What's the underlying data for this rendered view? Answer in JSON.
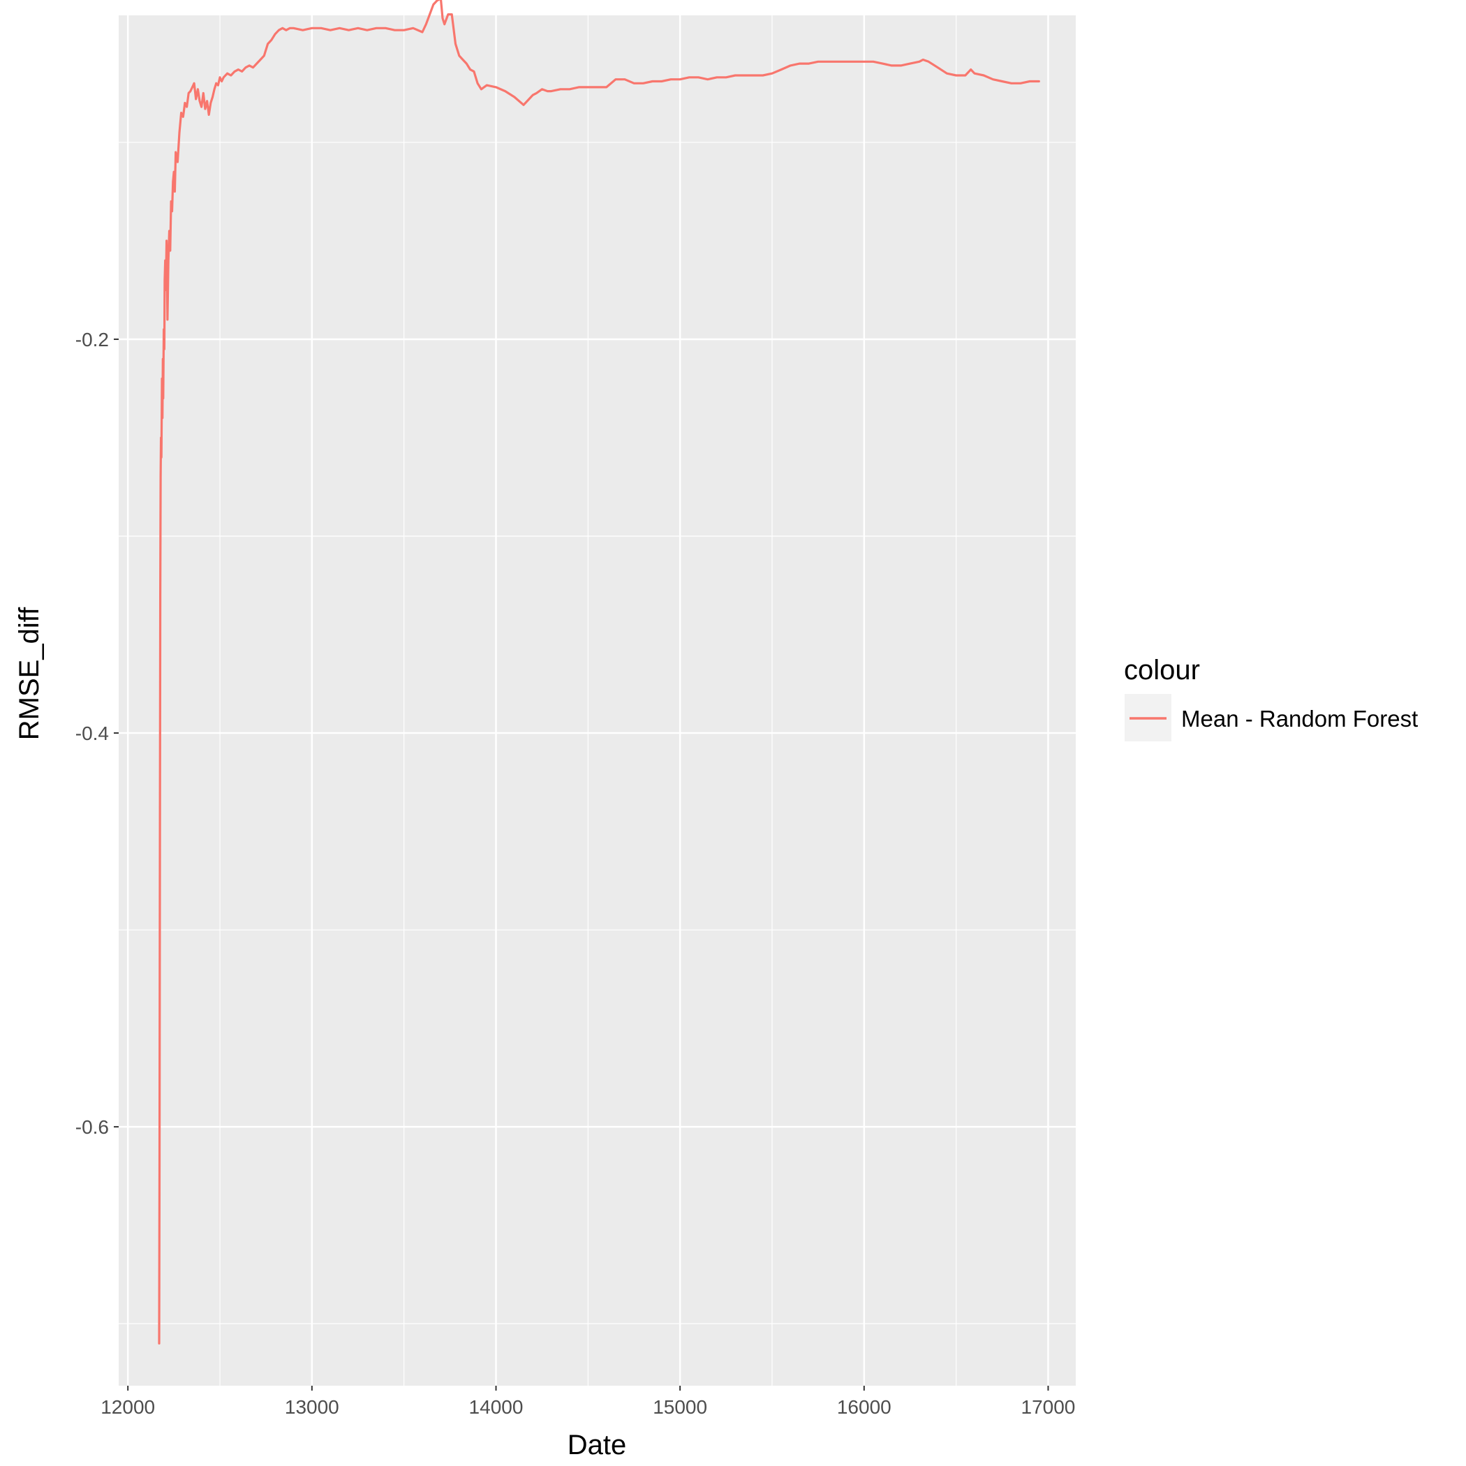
{
  "chart_data": {
    "type": "line",
    "xlabel": "Date",
    "ylabel": "RMSE_diff",
    "xlim": [
      11950,
      17150
    ],
    "ylim": [
      -0.7315,
      -0.0355
    ],
    "x_ticks": [
      12000,
      13000,
      14000,
      15000,
      16000,
      17000
    ],
    "x_tick_labels": [
      "12000",
      "13000",
      "14000",
      "15000",
      "16000",
      "17000"
    ],
    "y_ticks": [
      -0.2,
      -0.4,
      -0.6
    ],
    "y_tick_labels": [
      "-0.2",
      "-0.4",
      "-0.6"
    ],
    "grid": true,
    "legend": {
      "title": "colour",
      "placement": "right",
      "entries": [
        {
          "label": "Mean - Random Forest",
          "color": "#F8766D"
        }
      ]
    },
    "series": [
      {
        "name": "Mean - Random Forest",
        "color": "#F8766D",
        "x": [
          12170,
          12172,
          12174,
          12176,
          12178,
          12180,
          12182,
          12185,
          12188,
          12190,
          12192,
          12195,
          12198,
          12200,
          12203,
          12206,
          12210,
          12215,
          12220,
          12225,
          12230,
          12235,
          12240,
          12245,
          12250,
          12255,
          12260,
          12270,
          12280,
          12290,
          12300,
          12310,
          12320,
          12330,
          12340,
          12350,
          12360,
          12370,
          12380,
          12390,
          12400,
          12410,
          12420,
          12430,
          12440,
          12450,
          12460,
          12470,
          12480,
          12490,
          12500,
          12510,
          12520,
          12540,
          12560,
          12580,
          12600,
          12620,
          12640,
          12660,
          12680,
          12700,
          12720,
          12740,
          12760,
          12780,
          12800,
          12820,
          12840,
          12860,
          12880,
          12900,
          12950,
          13000,
          13050,
          13100,
          13150,
          13200,
          13250,
          13300,
          13350,
          13400,
          13450,
          13500,
          13550,
          13600,
          13620,
          13640,
          13660,
          13680,
          13700,
          13710,
          13720,
          13740,
          13760,
          13780,
          13800,
          13820,
          13840,
          13860,
          13880,
          13900,
          13920,
          13950,
          14000,
          14050,
          14100,
          14150,
          14180,
          14200,
          14220,
          14250,
          14280,
          14300,
          14350,
          14400,
          14450,
          14500,
          14550,
          14600,
          14650,
          14700,
          14750,
          14800,
          14850,
          14900,
          14950,
          15000,
          15050,
          15100,
          15150,
          15200,
          15250,
          15300,
          15350,
          15400,
          15450,
          15500,
          15550,
          15600,
          15650,
          15700,
          15750,
          15800,
          15850,
          15900,
          15950,
          16000,
          16050,
          16100,
          16150,
          16200,
          16250,
          16300,
          16320,
          16350,
          16400,
          16450,
          16500,
          16550,
          16580,
          16600,
          16650,
          16700,
          16750,
          16800,
          16850,
          16900,
          16950
        ],
        "values": [
          -0.71,
          -0.62,
          -0.45,
          -0.33,
          -0.27,
          -0.25,
          -0.26,
          -0.22,
          -0.24,
          -0.21,
          -0.23,
          -0.195,
          -0.205,
          -0.17,
          -0.16,
          -0.175,
          -0.15,
          -0.19,
          -0.16,
          -0.145,
          -0.155,
          -0.13,
          -0.135,
          -0.12,
          -0.115,
          -0.125,
          -0.105,
          -0.11,
          -0.095,
          -0.085,
          -0.087,
          -0.08,
          -0.082,
          -0.075,
          -0.074,
          -0.072,
          -0.07,
          -0.078,
          -0.073,
          -0.079,
          -0.082,
          -0.075,
          -0.083,
          -0.079,
          -0.086,
          -0.08,
          -0.077,
          -0.073,
          -0.07,
          -0.071,
          -0.067,
          -0.069,
          -0.067,
          -0.065,
          -0.066,
          -0.064,
          -0.063,
          -0.064,
          -0.062,
          -0.061,
          -0.062,
          -0.06,
          -0.058,
          -0.056,
          -0.05,
          -0.048,
          -0.045,
          -0.043,
          -0.042,
          -0.043,
          -0.042,
          -0.042,
          -0.043,
          -0.042,
          -0.042,
          -0.043,
          -0.042,
          -0.043,
          -0.042,
          -0.043,
          -0.042,
          -0.042,
          -0.043,
          -0.043,
          -0.042,
          -0.044,
          -0.04,
          -0.035,
          -0.03,
          -0.028,
          -0.027,
          -0.037,
          -0.04,
          -0.035,
          -0.035,
          -0.05,
          -0.056,
          -0.058,
          -0.06,
          -0.063,
          -0.064,
          -0.07,
          -0.073,
          -0.071,
          -0.072,
          -0.074,
          -0.077,
          -0.081,
          -0.078,
          -0.076,
          -0.075,
          -0.073,
          -0.074,
          -0.074,
          -0.073,
          -0.073,
          -0.072,
          -0.072,
          -0.072,
          -0.072,
          -0.068,
          -0.068,
          -0.07,
          -0.07,
          -0.069,
          -0.069,
          -0.068,
          -0.068,
          -0.067,
          -0.067,
          -0.068,
          -0.067,
          -0.067,
          -0.066,
          -0.066,
          -0.066,
          -0.066,
          -0.065,
          -0.063,
          -0.061,
          -0.06,
          -0.06,
          -0.059,
          -0.059,
          -0.059,
          -0.059,
          -0.059,
          -0.059,
          -0.059,
          -0.06,
          -0.061,
          -0.061,
          -0.06,
          -0.059,
          -0.058,
          -0.059,
          -0.062,
          -0.065,
          -0.066,
          -0.066,
          -0.063,
          -0.065,
          -0.066,
          -0.068,
          -0.069,
          -0.07,
          -0.07,
          -0.069,
          -0.069
        ]
      }
    ]
  }
}
